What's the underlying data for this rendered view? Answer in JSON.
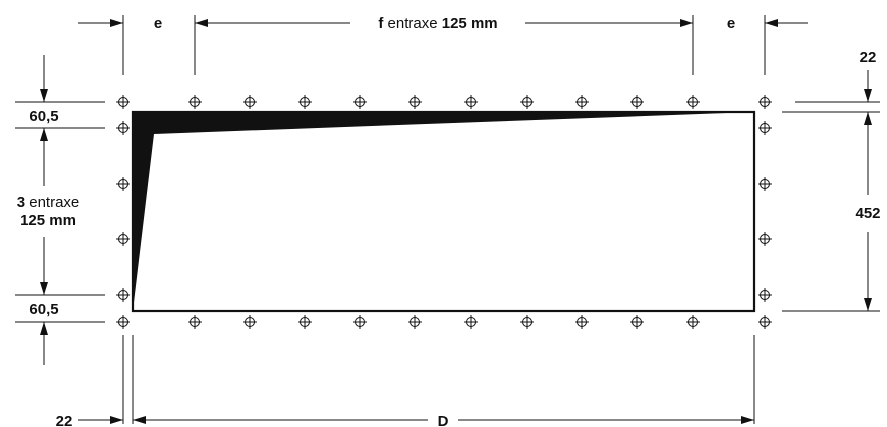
{
  "labels": {
    "e_left": "e",
    "e_right": "e",
    "f_prefix": "f",
    "f_mid": " entraxe ",
    "f_value": "125 mm",
    "top_margin": "22",
    "top_offset": "60,5",
    "bottom_offset": "60,5",
    "vert_count": "3",
    "vert_word": " entraxe",
    "vert_value": "125 mm",
    "height": "452",
    "bottom_margin": "22",
    "length": "D"
  }
}
